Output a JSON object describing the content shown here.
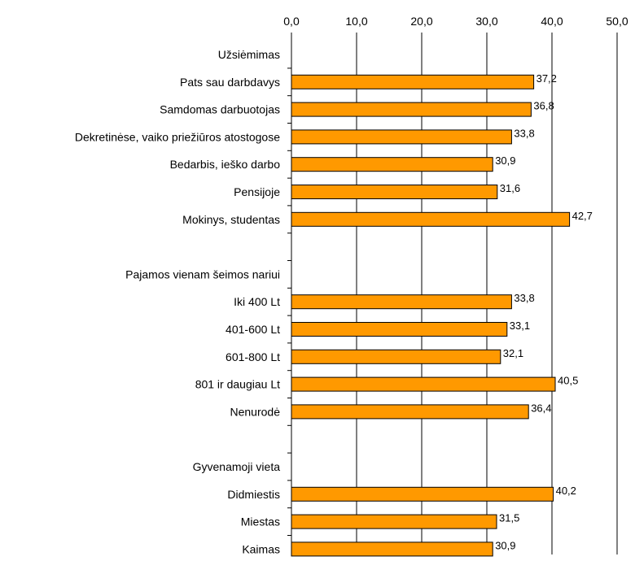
{
  "chart_data": {
    "type": "bar",
    "orientation": "horizontal",
    "xlim": [
      0,
      50
    ],
    "x_ticks": [
      "0,0",
      "10,0",
      "20,0",
      "30,0",
      "40,0",
      "50,0"
    ],
    "tick_values": [
      0,
      10,
      20,
      30,
      40,
      50
    ],
    "grid": true,
    "legend": "none",
    "bar_color": "#FF9900",
    "bar_edge_color": "#000000",
    "categories": [
      "Užsiėmimas",
      "Pats sau darbdavys",
      "Samdomas darbuotojas",
      "Dekretinėse, vaiko priežiūros atostogose",
      "Bedarbis, ieško darbo",
      "Pensijoje",
      "Mokinys, studentas",
      "",
      "Pajamos vienam šeimos nariui",
      "Iki 400 Lt",
      "401-600 Lt",
      "601-800 Lt",
      "801 ir daugiau Lt",
      "Nenurodė",
      "",
      "Gyvenamoji vieta",
      "Didmiestis",
      "Miestas",
      "Kaimas"
    ],
    "values": [
      null,
      37.2,
      36.8,
      33.8,
      30.9,
      31.6,
      42.7,
      null,
      null,
      33.8,
      33.1,
      32.1,
      40.5,
      36.4,
      null,
      null,
      40.2,
      31.5,
      30.9
    ],
    "value_labels": [
      null,
      "37,2",
      "36,8",
      "33,8",
      "30,9",
      "31,6",
      "42,7",
      null,
      null,
      "33,8",
      "33,1",
      "32,1",
      "40,5",
      "36,4",
      null,
      null,
      "40,2",
      "31,5",
      "30,9"
    ]
  }
}
